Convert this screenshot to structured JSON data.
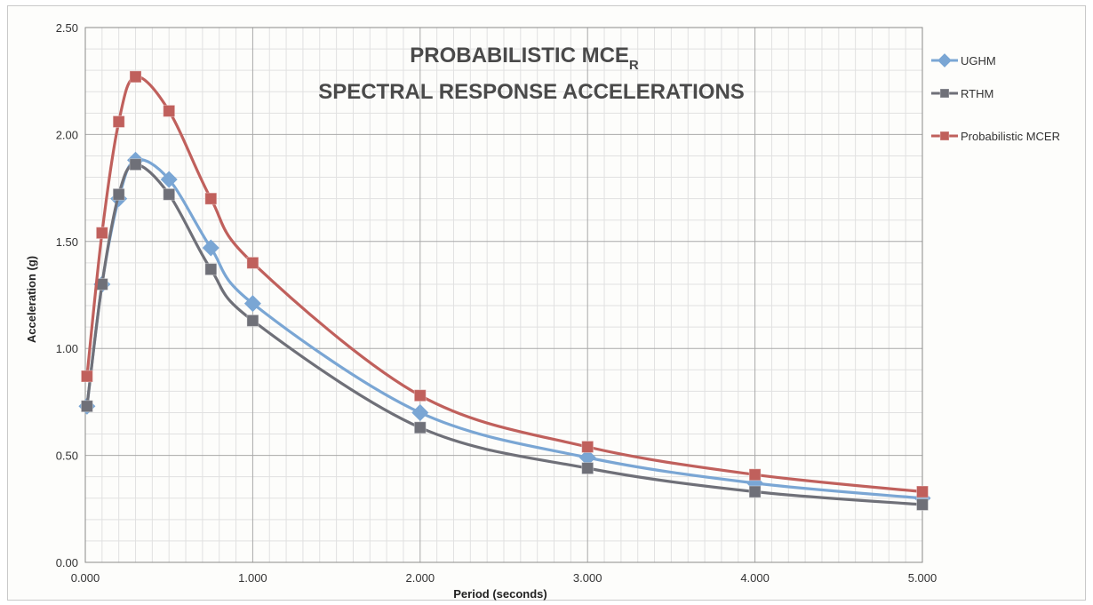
{
  "chart_data": {
    "type": "line",
    "title_line1_main": "PROBABILISTIC MCE",
    "title_line1_sub": "R",
    "title_line2": "SPECTRAL RESPONSE ACCELERATIONS",
    "xlabel": "Period (seconds)",
    "ylabel": "Acceleration (g)",
    "xlim": [
      0,
      5
    ],
    "ylim": [
      0,
      2.5
    ],
    "x_ticks": [
      "0.000",
      "1.000",
      "2.000",
      "3.000",
      "4.000",
      "5.000"
    ],
    "y_ticks": [
      "0.00",
      "0.50",
      "1.00",
      "1.50",
      "2.00",
      "2.50"
    ],
    "grid": true,
    "legend_position": "right",
    "series": [
      {
        "name": "UGHM",
        "color": "#7aa6d4",
        "marker": "diamond",
        "x": [
          0.01,
          0.1,
          0.2,
          0.3,
          0.5,
          0.75,
          1.0,
          2.0,
          3.0,
          4.0,
          5.0
        ],
        "y": [
          0.73,
          1.3,
          1.7,
          1.88,
          1.79,
          1.47,
          1.21,
          0.7,
          0.49,
          0.37,
          0.3
        ]
      },
      {
        "name": "RTHM",
        "color": "#6f7078",
        "marker": "square",
        "x": [
          0.01,
          0.1,
          0.2,
          0.3,
          0.5,
          0.75,
          1.0,
          2.0,
          3.0,
          4.0,
          5.0
        ],
        "y": [
          0.73,
          1.3,
          1.72,
          1.86,
          1.72,
          1.37,
          1.13,
          0.63,
          0.44,
          0.33,
          0.27
        ]
      },
      {
        "name": "Probabilistic MCER",
        "color": "#c0605c",
        "marker": "square",
        "x": [
          0.01,
          0.1,
          0.2,
          0.3,
          0.5,
          0.75,
          1.0,
          2.0,
          3.0,
          4.0,
          5.0
        ],
        "y": [
          0.87,
          1.54,
          2.06,
          2.27,
          2.11,
          1.7,
          1.4,
          0.78,
          0.54,
          0.41,
          0.33
        ]
      }
    ]
  }
}
